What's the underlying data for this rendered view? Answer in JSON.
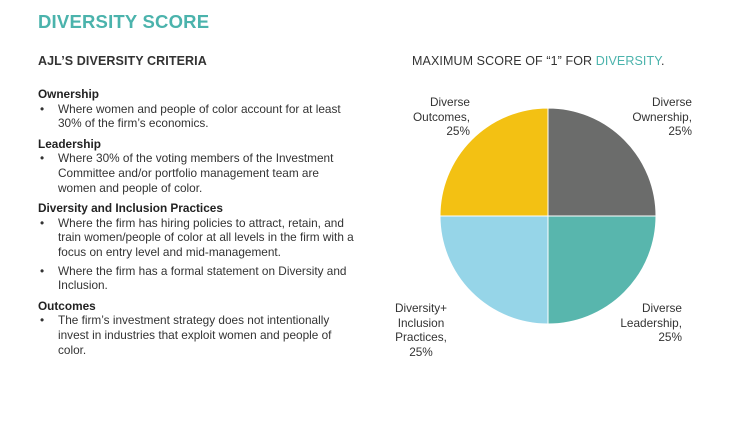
{
  "header": {
    "title": "DIVERSITY SCORE",
    "subtitle": "AJL’S DIVERSITY CRITERIA"
  },
  "criteria": [
    {
      "heading": "Ownership",
      "bullets": [
        "Where women and people of color account for at least 30% of the firm’s economics."
      ]
    },
    {
      "heading": "Leadership",
      "bullets": [
        "Where 30% of the voting members of the Investment Committee and/or portfolio management team are women and people of color."
      ]
    },
    {
      "heading": "Diversity and Inclusion Practices",
      "bullets": [
        "Where the firm has hiring policies to attract, retain, and train women/people of color at all levels in the firm with a focus on entry level and mid-management.",
        "Where the firm has a formal statement on Diversity and Inclusion."
      ]
    },
    {
      "heading": "Outcomes",
      "bullets": [
        "The firm’s investment strategy does not intentionally invest in industries that exploit women and people of color."
      ]
    }
  ],
  "bullet_glyph": "•",
  "chart_header": {
    "text_before": "MAXIMUM SCORE OF “1” FOR ",
    "accent_word": "DIVERSITY",
    "text_after": "."
  },
  "chart_data": {
    "type": "pie",
    "title": "MAXIMUM SCORE OF “1” FOR DIVERSITY.",
    "slices": [
      {
        "label_lines": [
          "Diverse",
          "Ownership,",
          "25%"
        ],
        "label": "Diverse Ownership",
        "value": 25,
        "color": "#6b6c6b"
      },
      {
        "label_lines": [
          "Diverse",
          "Leadership,",
          "25%"
        ],
        "label": "Diverse Leadership",
        "value": 25,
        "color": "#58b6ad"
      },
      {
        "label_lines": [
          "Diversity+",
          "Inclusion",
          "Practices,",
          "25%"
        ],
        "label": "Diversity+ Inclusion Practices",
        "value": 25,
        "color": "#96d5e8"
      },
      {
        "label_lines": [
          "Diverse",
          "Outcomes,",
          "25%"
        ],
        "label": "Diverse Outcomes",
        "value": 25,
        "color": "#f3c113"
      }
    ],
    "start_angle_deg": 0,
    "direction": "clockwise",
    "slice_border_color": "#ffffff"
  }
}
